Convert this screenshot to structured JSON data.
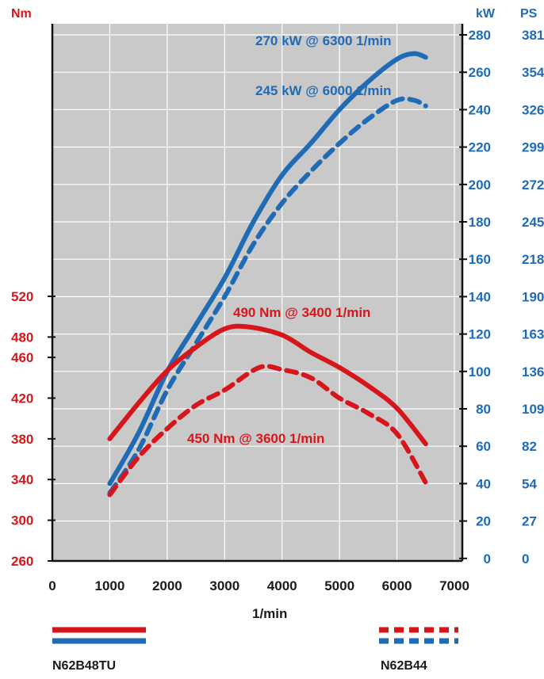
{
  "chart_data": {
    "type": "line",
    "title": "",
    "xlabel": "1/min",
    "x_ticks": [
      "0",
      "1000",
      "2000",
      "3000",
      "4000",
      "5000",
      "6000",
      "7000"
    ],
    "xlim": [
      0,
      7000
    ],
    "torque_axis": {
      "unit": "Nm",
      "ticks": [
        "260",
        "300",
        "340",
        "380",
        "420",
        "460",
        "480",
        "520"
      ],
      "color": "#d7161c"
    },
    "power_axis": {
      "unit": "kW",
      "ticks": [
        "0",
        "20",
        "40",
        "60",
        "80",
        "100",
        "120",
        "140",
        "160",
        "180",
        "200",
        "220",
        "240",
        "260",
        "280"
      ],
      "ylim": [
        0,
        280
      ],
      "color": "#1f6bb5"
    },
    "ps_axis": {
      "unit": "PS",
      "ticks": [
        "0",
        "27",
        "54",
        "82",
        "109",
        "136",
        "163",
        "190",
        "218",
        "245",
        "272",
        "299",
        "326",
        "354",
        "381"
      ],
      "color": "#1f6bb5"
    },
    "grid": true,
    "series": [
      {
        "name": "N62B48TU",
        "quantity": "power",
        "unit": "kW",
        "style": "solid",
        "color": "#1f6bb5",
        "x": [
          1000,
          1500,
          2000,
          2500,
          3000,
          3500,
          4000,
          4500,
          5000,
          5500,
          6000,
          6300,
          6500
        ],
        "y": [
          40,
          67,
          100,
          125,
          150,
          180,
          205,
          222,
          240,
          255,
          267,
          270,
          268
        ]
      },
      {
        "name": "N62B44",
        "quantity": "power",
        "unit": "kW",
        "style": "dashed",
        "color": "#1f6bb5",
        "x": [
          1000,
          1500,
          2000,
          2500,
          3000,
          3500,
          4000,
          4500,
          5000,
          5500,
          6000,
          6300,
          6500
        ],
        "y": [
          35,
          58,
          90,
          115,
          140,
          168,
          190,
          207,
          222,
          235,
          245,
          245,
          242
        ]
      },
      {
        "name": "N62B48TU",
        "quantity": "torque",
        "unit": "Nm",
        "style": "solid",
        "color": "#d7161c",
        "x": [
          1000,
          1500,
          2000,
          2500,
          3000,
          3400,
          4000,
          4500,
          5000,
          5500,
          6000,
          6500
        ],
        "y": [
          380,
          415,
          447,
          470,
          488,
          490,
          482,
          465,
          450,
          432,
          410,
          375
        ]
      },
      {
        "name": "N62B44",
        "quantity": "torque",
        "unit": "Nm",
        "style": "dashed",
        "color": "#d7161c",
        "x": [
          1000,
          1500,
          2000,
          2500,
          3000,
          3600,
          4000,
          4500,
          5000,
          5500,
          6000,
          6500
        ],
        "y": [
          325,
          362,
          390,
          413,
          428,
          450,
          448,
          440,
          420,
          405,
          385,
          337
        ]
      }
    ],
    "annotations": [
      {
        "text": "270 kW @ 6300 1/min",
        "color": "#1f6bb5"
      },
      {
        "text": "245 kW @ 6000 1/min",
        "color": "#1f6bb5"
      },
      {
        "text": "490 Nm @ 3400 1/min",
        "color": "#d7161c"
      },
      {
        "text": "450 Nm @ 3600 1/min",
        "color": "#d7161c"
      }
    ],
    "legend": {
      "placement": "bottom",
      "items": [
        {
          "label": "N62B48TU",
          "style": "solid"
        },
        {
          "label": "N62B44",
          "style": "dashed"
        }
      ]
    }
  }
}
